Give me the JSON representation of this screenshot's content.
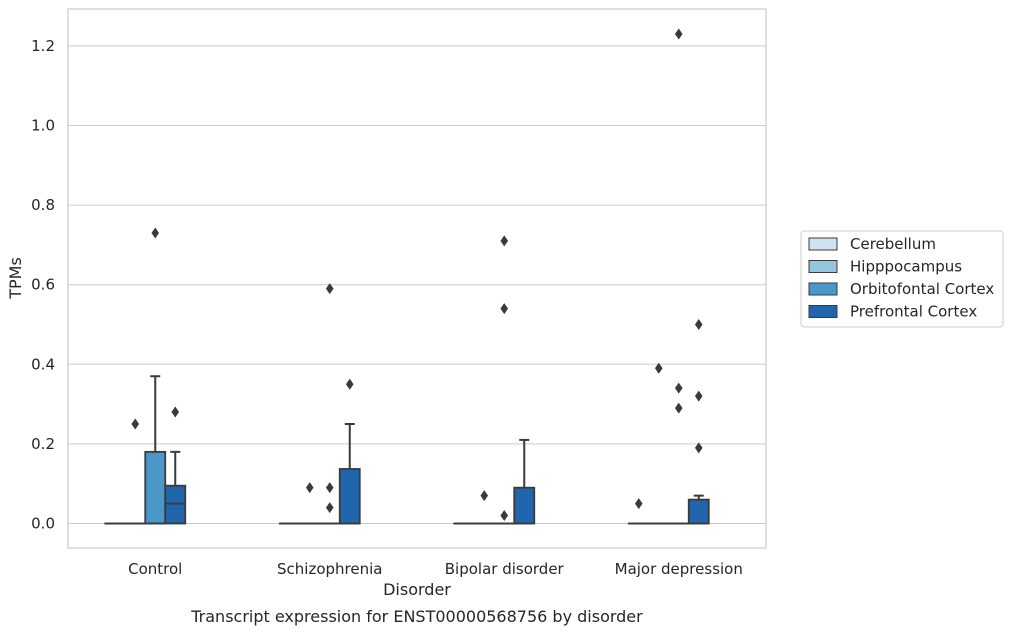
{
  "chart_data": {
    "type": "boxplot",
    "title": "",
    "caption": "Transcript expression for ENST00000568756 by disorder",
    "xlabel": "Disorder",
    "ylabel": "TPMs",
    "ylim": [
      -0.06,
      1.29
    ],
    "yticks": [
      0.0,
      0.2,
      0.4,
      0.6,
      0.8,
      1.0,
      1.2
    ],
    "ytick_labels": [
      "0.0",
      "0.2",
      "0.4",
      "0.6",
      "0.8",
      "1.0",
      "1.2"
    ],
    "grid": "horizontal",
    "legend_position": "right",
    "categories": [
      "Control",
      "Schizophrenia",
      "Bipolar disorder",
      "Major depression"
    ],
    "series": [
      {
        "name": "Cerebellum",
        "color": "#d0e1f2",
        "boxes": [
          {
            "q1": 0,
            "median": 0,
            "q3": 0,
            "whisker_low": 0,
            "whisker_high": 0,
            "outliers": []
          },
          {
            "q1": 0,
            "median": 0,
            "q3": 0,
            "whisker_low": 0,
            "whisker_high": 0,
            "outliers": []
          },
          {
            "q1": 0,
            "median": 0,
            "q3": 0,
            "whisker_low": 0,
            "whisker_high": 0,
            "outliers": []
          },
          {
            "q1": 0,
            "median": 0,
            "q3": 0,
            "whisker_low": 0,
            "whisker_high": 0,
            "outliers": [
              0.05
            ]
          }
        ]
      },
      {
        "name": "Hipppocampus",
        "color": "#94c4df",
        "boxes": [
          {
            "q1": 0,
            "median": 0,
            "q3": 0,
            "whisker_low": 0,
            "whisker_high": 0,
            "outliers": [
              0.25
            ]
          },
          {
            "q1": 0,
            "median": 0,
            "q3": 0,
            "whisker_low": 0,
            "whisker_high": 0,
            "outliers": [
              0.09
            ]
          },
          {
            "q1": 0,
            "median": 0,
            "q3": 0,
            "whisker_low": 0,
            "whisker_high": 0,
            "outliers": [
              0.07
            ]
          },
          {
            "q1": 0,
            "median": 0,
            "q3": 0,
            "whisker_low": 0,
            "whisker_high": 0,
            "outliers": [
              0.39
            ]
          }
        ]
      },
      {
        "name": "Orbitofontal Cortex",
        "color": "#4a98c9",
        "boxes": [
          {
            "q1": 0,
            "median": 0,
            "q3": 0.18,
            "whisker_low": 0,
            "whisker_high": 0.37,
            "outliers": [
              0.73
            ]
          },
          {
            "q1": 0,
            "median": 0,
            "q3": 0,
            "whisker_low": 0,
            "whisker_high": 0,
            "outliers": [
              0.04,
              0.09,
              0.59
            ]
          },
          {
            "q1": 0,
            "median": 0,
            "q3": 0,
            "whisker_low": 0,
            "whisker_high": 0,
            "outliers": [
              0.02,
              0.54,
              0.71
            ]
          },
          {
            "q1": 0,
            "median": 0,
            "q3": 0,
            "whisker_low": 0,
            "whisker_high": 0,
            "outliers": [
              0.29,
              0.34,
              1.23
            ]
          }
        ]
      },
      {
        "name": "Prefrontal Cortex",
        "color": "#2166ac",
        "boxes": [
          {
            "q1": 0,
            "median": 0.05,
            "q3": 0.095,
            "whisker_low": 0,
            "whisker_high": 0.18,
            "outliers": [
              0.28
            ]
          },
          {
            "q1": 0,
            "median": 0,
            "q3": 0.137,
            "whisker_low": 0,
            "whisker_high": 0.25,
            "outliers": [
              0.35
            ]
          },
          {
            "q1": 0,
            "median": 0,
            "q3": 0.09,
            "whisker_low": 0,
            "whisker_high": 0.21,
            "outliers": []
          },
          {
            "q1": 0,
            "median": 0,
            "q3": 0.06,
            "whisker_low": 0,
            "whisker_high": 0.07,
            "outliers": [
              0.19,
              0.32,
              0.5
            ]
          }
        ]
      }
    ]
  }
}
